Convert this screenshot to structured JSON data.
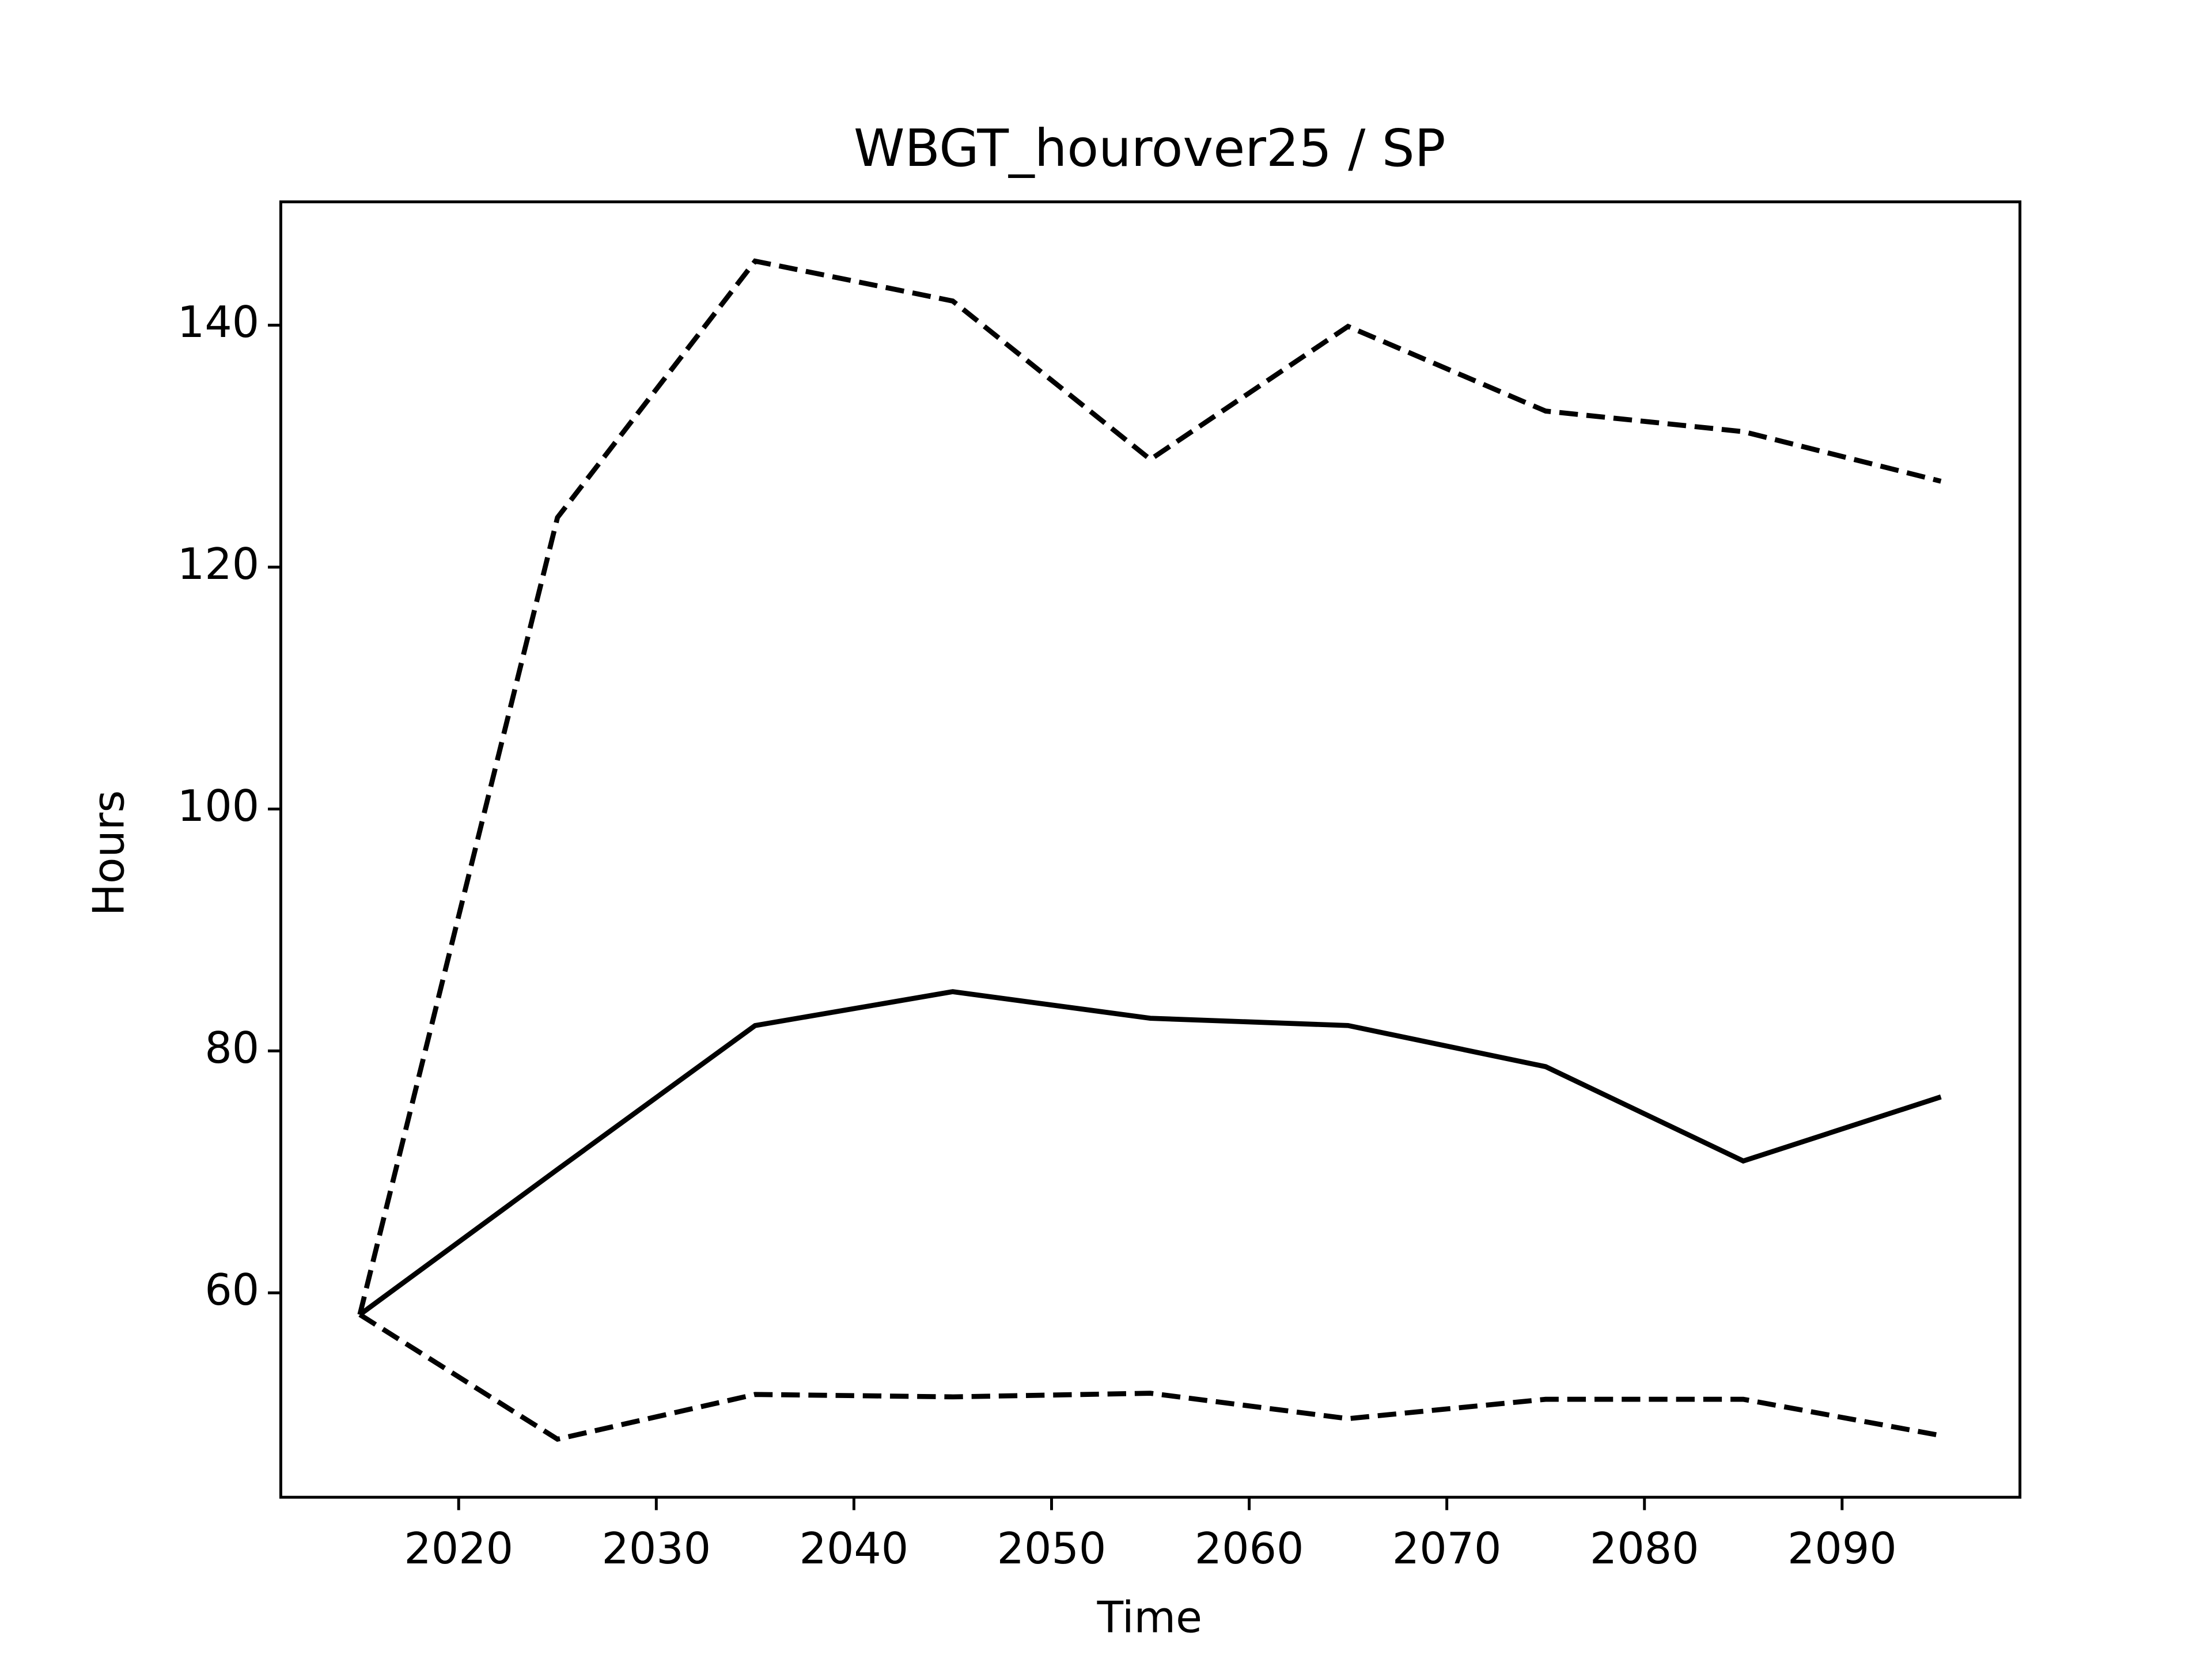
{
  "chart_data": {
    "type": "line",
    "title": "WBGT_hourover25 / SP",
    "xlabel": "Time",
    "ylabel": "Hours",
    "x": [
      2015,
      2025,
      2035,
      2045,
      2055,
      2065,
      2075,
      2085,
      2095
    ],
    "series": [
      {
        "color": "#000000",
        "linestyle": "solid",
        "values": [
          58.2,
          70.2,
          82.1,
          84.9,
          82.7,
          82.1,
          78.7,
          70.9,
          76.2
        ]
      },
      {
        "color": "#000000",
        "linestyle": "dashed",
        "values": [
          58.2,
          124.1,
          145.3,
          142.0,
          128.9,
          139.9,
          132.9,
          131.2,
          127.1
        ]
      },
      {
        "color": "#000000",
        "linestyle": "dashed",
        "values": [
          58.2,
          47.9,
          51.6,
          51.4,
          51.7,
          49.6,
          51.2,
          51.2,
          48.2
        ]
      }
    ],
    "xlim": [
      2011,
      2099
    ],
    "xticks": [
      2020,
      2030,
      2040,
      2050,
      2060,
      2070,
      2080,
      2090
    ],
    "ylim": [
      43.1,
      150.2
    ],
    "yticks": [
      60,
      80,
      100,
      120,
      140
    ],
    "grid": false
  }
}
